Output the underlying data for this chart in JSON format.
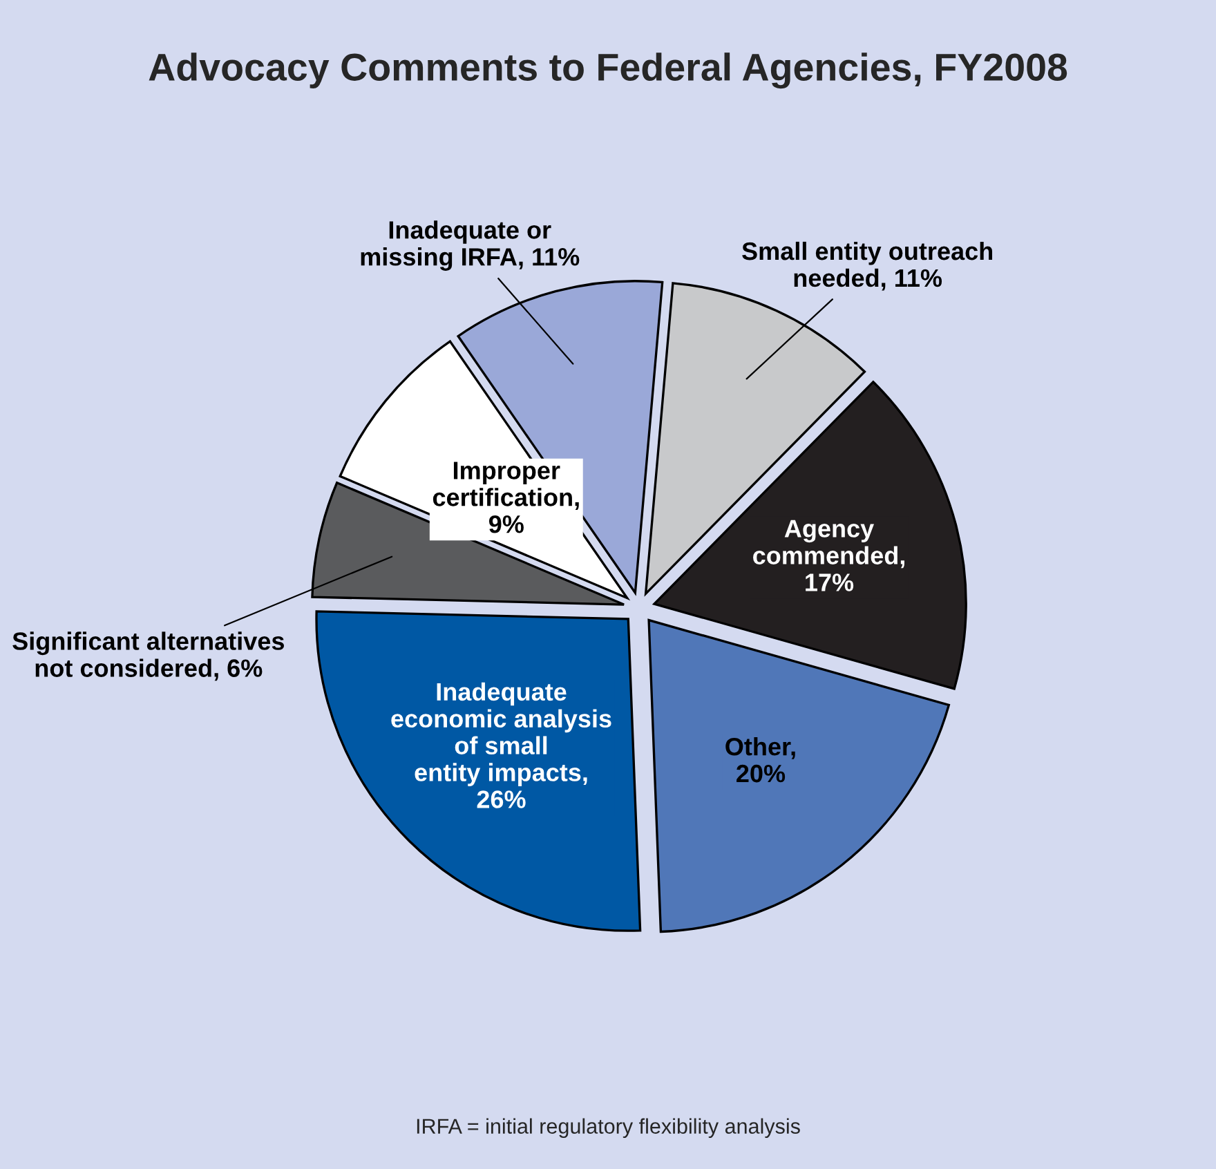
{
  "chart_data": {
    "type": "pie",
    "title": "Advocacy Comments to Federal Agencies, FY2008",
    "categories": [
      "Small entity outreach\nneeded, 11%",
      "Agency\ncommended,\n17%",
      "Other,\n20%",
      "Inadequate\neconomic analysis\nof small\nentity impacts,\n26%",
      "Significant alternatives\nnot considered, 6%",
      "Improper\ncertification,\n9%",
      "Inadequate or\nmissing IRFA, 11%"
    ],
    "values": [
      11,
      17,
      20,
      26,
      6,
      9,
      11
    ],
    "colors": [
      "#c8c9cb",
      "#231f20",
      "#5077b8",
      "#0058a4",
      "#5a5b5d",
      "#ffffff",
      "#9aa8d8"
    ],
    "annotations": [
      "IRFA = initial regulatory flexibility analysis"
    ]
  }
}
